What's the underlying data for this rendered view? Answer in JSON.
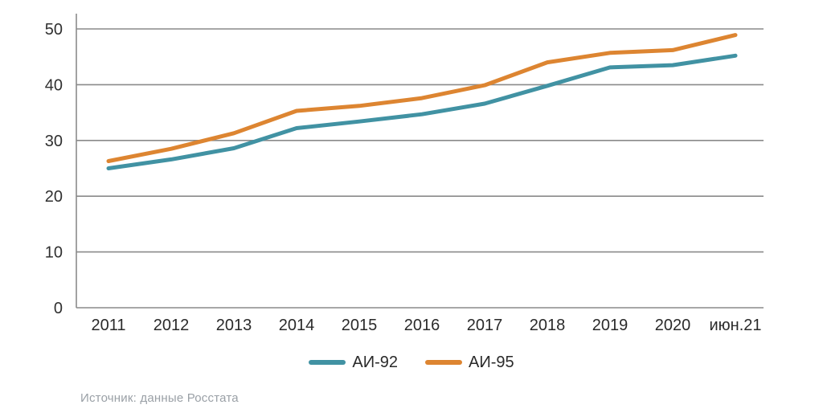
{
  "chart_data": {
    "type": "line",
    "x": [
      "2011",
      "2012",
      "2013",
      "2014",
      "2015",
      "2016",
      "2017",
      "2018",
      "2019",
      "2020",
      "июн.21"
    ],
    "series": [
      {
        "name": "АИ-92",
        "color": "#4192a3",
        "values": [
          25.0,
          26.6,
          28.6,
          32.2,
          33.4,
          34.7,
          36.6,
          39.8,
          43.1,
          43.5,
          45.2
        ]
      },
      {
        "name": "АИ-95",
        "color": "#dd8531",
        "values": [
          26.3,
          28.5,
          31.3,
          35.3,
          36.2,
          37.6,
          39.9,
          44.0,
          45.7,
          46.2,
          48.9
        ]
      }
    ],
    "title": "",
    "xlabel": "",
    "ylabel": "",
    "ylim": [
      0,
      50
    ],
    "yticks": [
      0,
      10,
      20,
      30,
      40,
      50
    ],
    "grid": "horizontal",
    "legend_position": "bottom"
  },
  "legend": {
    "items": [
      {
        "label": "АИ-92"
      },
      {
        "label": "АИ-95"
      }
    ]
  },
  "source": {
    "text": "Источник: данные Росстата"
  },
  "colors": {
    "background": "#ffffff",
    "axis": "#8a8a8a",
    "grid": "#8a8a8a",
    "y_tick_label": "#303030",
    "x_tick_label": "#2a2a2a",
    "source_text": "#9aa0a6",
    "series_ai92": "#4192a3",
    "series_ai95": "#dd8531"
  }
}
